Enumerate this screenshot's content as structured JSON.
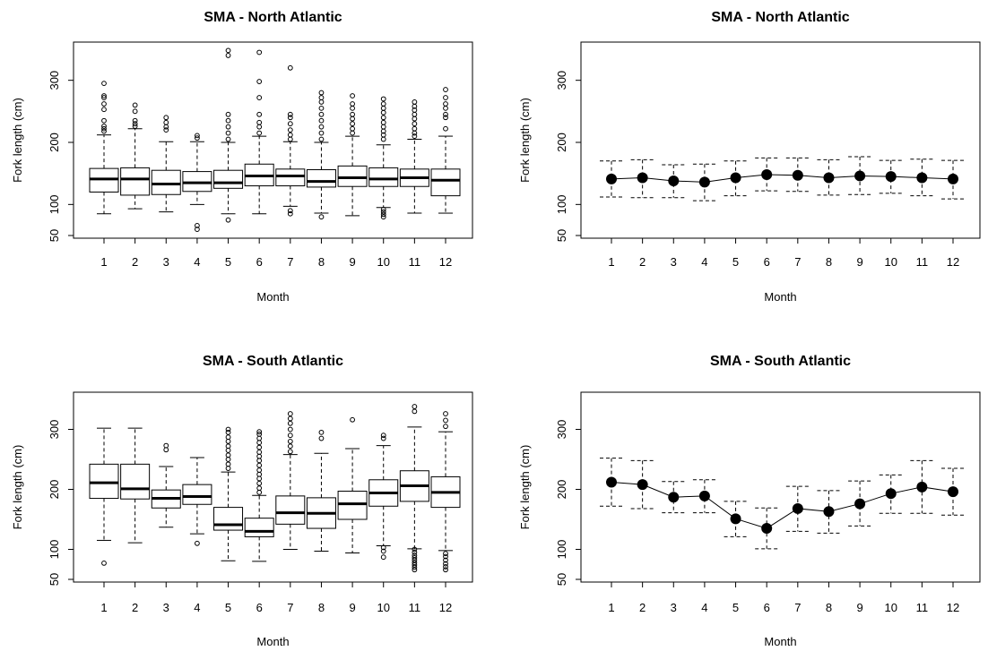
{
  "chart_data": [
    {
      "type": "box",
      "title": "SMA - North Atlantic",
      "xlabel": "Month",
      "ylabel": "Fork length (cm)",
      "ylim": [
        50,
        350
      ],
      "yticks": [
        50,
        100,
        200,
        300
      ],
      "categories": [
        "1",
        "2",
        "3",
        "4",
        "5",
        "6",
        "7",
        "8",
        "9",
        "10",
        "11",
        "12"
      ],
      "boxes": [
        {
          "lw": 85,
          "q1": 120,
          "med": 141,
          "q3": 158,
          "uw": 212,
          "outliers": [
            218,
            222,
            226,
            235,
            253,
            262,
            272,
            275,
            295
          ]
        },
        {
          "lw": 93,
          "q1": 115,
          "med": 141,
          "q3": 159,
          "uw": 222,
          "outliers": [
            226,
            230,
            235,
            250,
            260
          ]
        },
        {
          "lw": 88,
          "q1": 116,
          "med": 133,
          "q3": 155,
          "uw": 201,
          "outliers": [
            220,
            225,
            232,
            240
          ]
        },
        {
          "lw": 100,
          "q1": 121,
          "med": 135,
          "q3": 153,
          "uw": 201,
          "outliers": [
            60,
            66,
            207,
            211
          ]
        },
        {
          "lw": 85,
          "q1": 126,
          "med": 135,
          "q3": 155,
          "uw": 200,
          "outliers": [
            75,
            205,
            215,
            225,
            235,
            245,
            340,
            348
          ]
        },
        {
          "lw": 85,
          "q1": 130,
          "med": 146,
          "q3": 165,
          "uw": 210,
          "outliers": [
            215,
            225,
            232,
            245,
            272,
            298,
            345
          ]
        },
        {
          "lw": 97,
          "q1": 130,
          "med": 146,
          "q3": 157,
          "uw": 201,
          "outliers": [
            85,
            90,
            205,
            212,
            220,
            230,
            240,
            245,
            320
          ]
        },
        {
          "lw": 86,
          "q1": 128,
          "med": 137,
          "q3": 156,
          "uw": 200,
          "outliers": [
            80,
            205,
            215,
            225,
            235,
            245,
            255,
            265,
            272,
            280
          ]
        },
        {
          "lw": 82,
          "q1": 129,
          "med": 143,
          "q3": 162,
          "uw": 210,
          "outliers": [
            215,
            222,
            230,
            238,
            245,
            255,
            262,
            275
          ]
        },
        {
          "lw": 95,
          "q1": 129,
          "med": 141,
          "q3": 159,
          "uw": 196,
          "outliers": [
            80,
            84,
            88,
            92,
            205,
            212,
            218,
            225,
            232,
            240,
            248,
            255,
            262,
            270
          ]
        },
        {
          "lw": 86,
          "q1": 129,
          "med": 143,
          "q3": 157,
          "uw": 205,
          "outliers": [
            210,
            215,
            222,
            230,
            238,
            245,
            252,
            258,
            265
          ]
        },
        {
          "lw": 86,
          "q1": 114,
          "med": 139,
          "q3": 157,
          "uw": 210,
          "outliers": [
            222,
            240,
            245,
            255,
            262,
            272,
            285
          ]
        }
      ]
    },
    {
      "type": "line",
      "title": "SMA - North Atlantic",
      "xlabel": "Month",
      "ylabel": "Fork length (cm)",
      "ylim": [
        50,
        350
      ],
      "yticks": [
        50,
        100,
        200,
        300
      ],
      "categories": [
        "1",
        "2",
        "3",
        "4",
        "5",
        "6",
        "7",
        "8",
        "9",
        "10",
        "11",
        "12"
      ],
      "means": [
        141,
        143,
        138,
        136,
        143,
        148,
        147,
        143,
        146,
        145,
        143,
        141
      ],
      "upper": [
        170,
        172,
        164,
        165,
        170,
        175,
        175,
        172,
        177,
        171,
        173,
        171
      ],
      "lower": [
        112,
        111,
        111,
        106,
        114,
        122,
        121,
        115,
        116,
        118,
        114,
        109
      ]
    },
    {
      "type": "box",
      "title": "SMA - South Atlantic",
      "xlabel": "Month",
      "ylabel": "Fork length (cm)",
      "ylim": [
        50,
        350
      ],
      "yticks": [
        50,
        100,
        200,
        300
      ],
      "categories": [
        "1",
        "2",
        "3",
        "4",
        "5",
        "6",
        "7",
        "8",
        "9",
        "10",
        "11",
        "12"
      ],
      "boxes": [
        {
          "lw": 115,
          "q1": 185,
          "med": 211,
          "q3": 242,
          "uw": 302,
          "outliers": [
            77
          ]
        },
        {
          "lw": 111,
          "q1": 184,
          "med": 201,
          "q3": 242,
          "uw": 302,
          "outliers": []
        },
        {
          "lw": 137,
          "q1": 169,
          "med": 185,
          "q3": 199,
          "uw": 238,
          "outliers": [
            266,
            273
          ]
        },
        {
          "lw": 126,
          "q1": 175,
          "med": 188,
          "q3": 208,
          "uw": 253,
          "outliers": [
            110
          ]
        },
        {
          "lw": 81,
          "q1": 132,
          "med": 141,
          "q3": 170,
          "uw": 229,
          "outliers": [
            235,
            242,
            250,
            257,
            265,
            272,
            280,
            287,
            295,
            300
          ]
        },
        {
          "lw": 80,
          "q1": 121,
          "med": 130,
          "q3": 152,
          "uw": 190,
          "outliers": [
            195,
            202,
            210,
            218,
            225,
            232,
            240,
            248,
            255,
            262,
            270,
            278,
            285,
            292,
            296
          ]
        },
        {
          "lw": 100,
          "q1": 142,
          "med": 161,
          "q3": 189,
          "uw": 258,
          "outliers": [
            263,
            272,
            280,
            290,
            300,
            310,
            318,
            326
          ]
        },
        {
          "lw": 97,
          "q1": 135,
          "med": 160,
          "q3": 186,
          "uw": 260,
          "outliers": [
            285,
            295
          ]
        },
        {
          "lw": 94,
          "q1": 150,
          "med": 176,
          "q3": 197,
          "uw": 268,
          "outliers": [
            316
          ]
        },
        {
          "lw": 106,
          "q1": 172,
          "med": 194,
          "q3": 216,
          "uw": 273,
          "outliers": [
            87,
            97,
            103,
            285,
            290
          ]
        },
        {
          "lw": 101,
          "q1": 180,
          "med": 206,
          "q3": 231,
          "uw": 304,
          "outliers": [
            66,
            70,
            74,
            78,
            82,
            86,
            90,
            95,
            100,
            330,
            338
          ]
        },
        {
          "lw": 98,
          "q1": 170,
          "med": 195,
          "q3": 221,
          "uw": 296,
          "outliers": [
            66,
            71,
            76,
            82,
            88,
            93,
            305,
            315,
            326
          ]
        }
      ]
    },
    {
      "type": "line",
      "title": "SMA - South Atlantic",
      "xlabel": "Month",
      "ylabel": "Fork length (cm)",
      "ylim": [
        50,
        350
      ],
      "yticks": [
        50,
        100,
        200,
        300
      ],
      "categories": [
        "1",
        "2",
        "3",
        "4",
        "5",
        "6",
        "7",
        "8",
        "9",
        "10",
        "11",
        "12"
      ],
      "means": [
        212,
        208,
        187,
        189,
        151,
        135,
        168,
        163,
        176,
        193,
        204,
        196
      ],
      "upper": [
        252,
        248,
        213,
        216,
        180,
        169,
        205,
        198,
        214,
        224,
        248,
        235
      ],
      "lower": [
        172,
        168,
        161,
        161,
        121,
        101,
        130,
        127,
        139,
        160,
        160,
        157
      ]
    }
  ]
}
